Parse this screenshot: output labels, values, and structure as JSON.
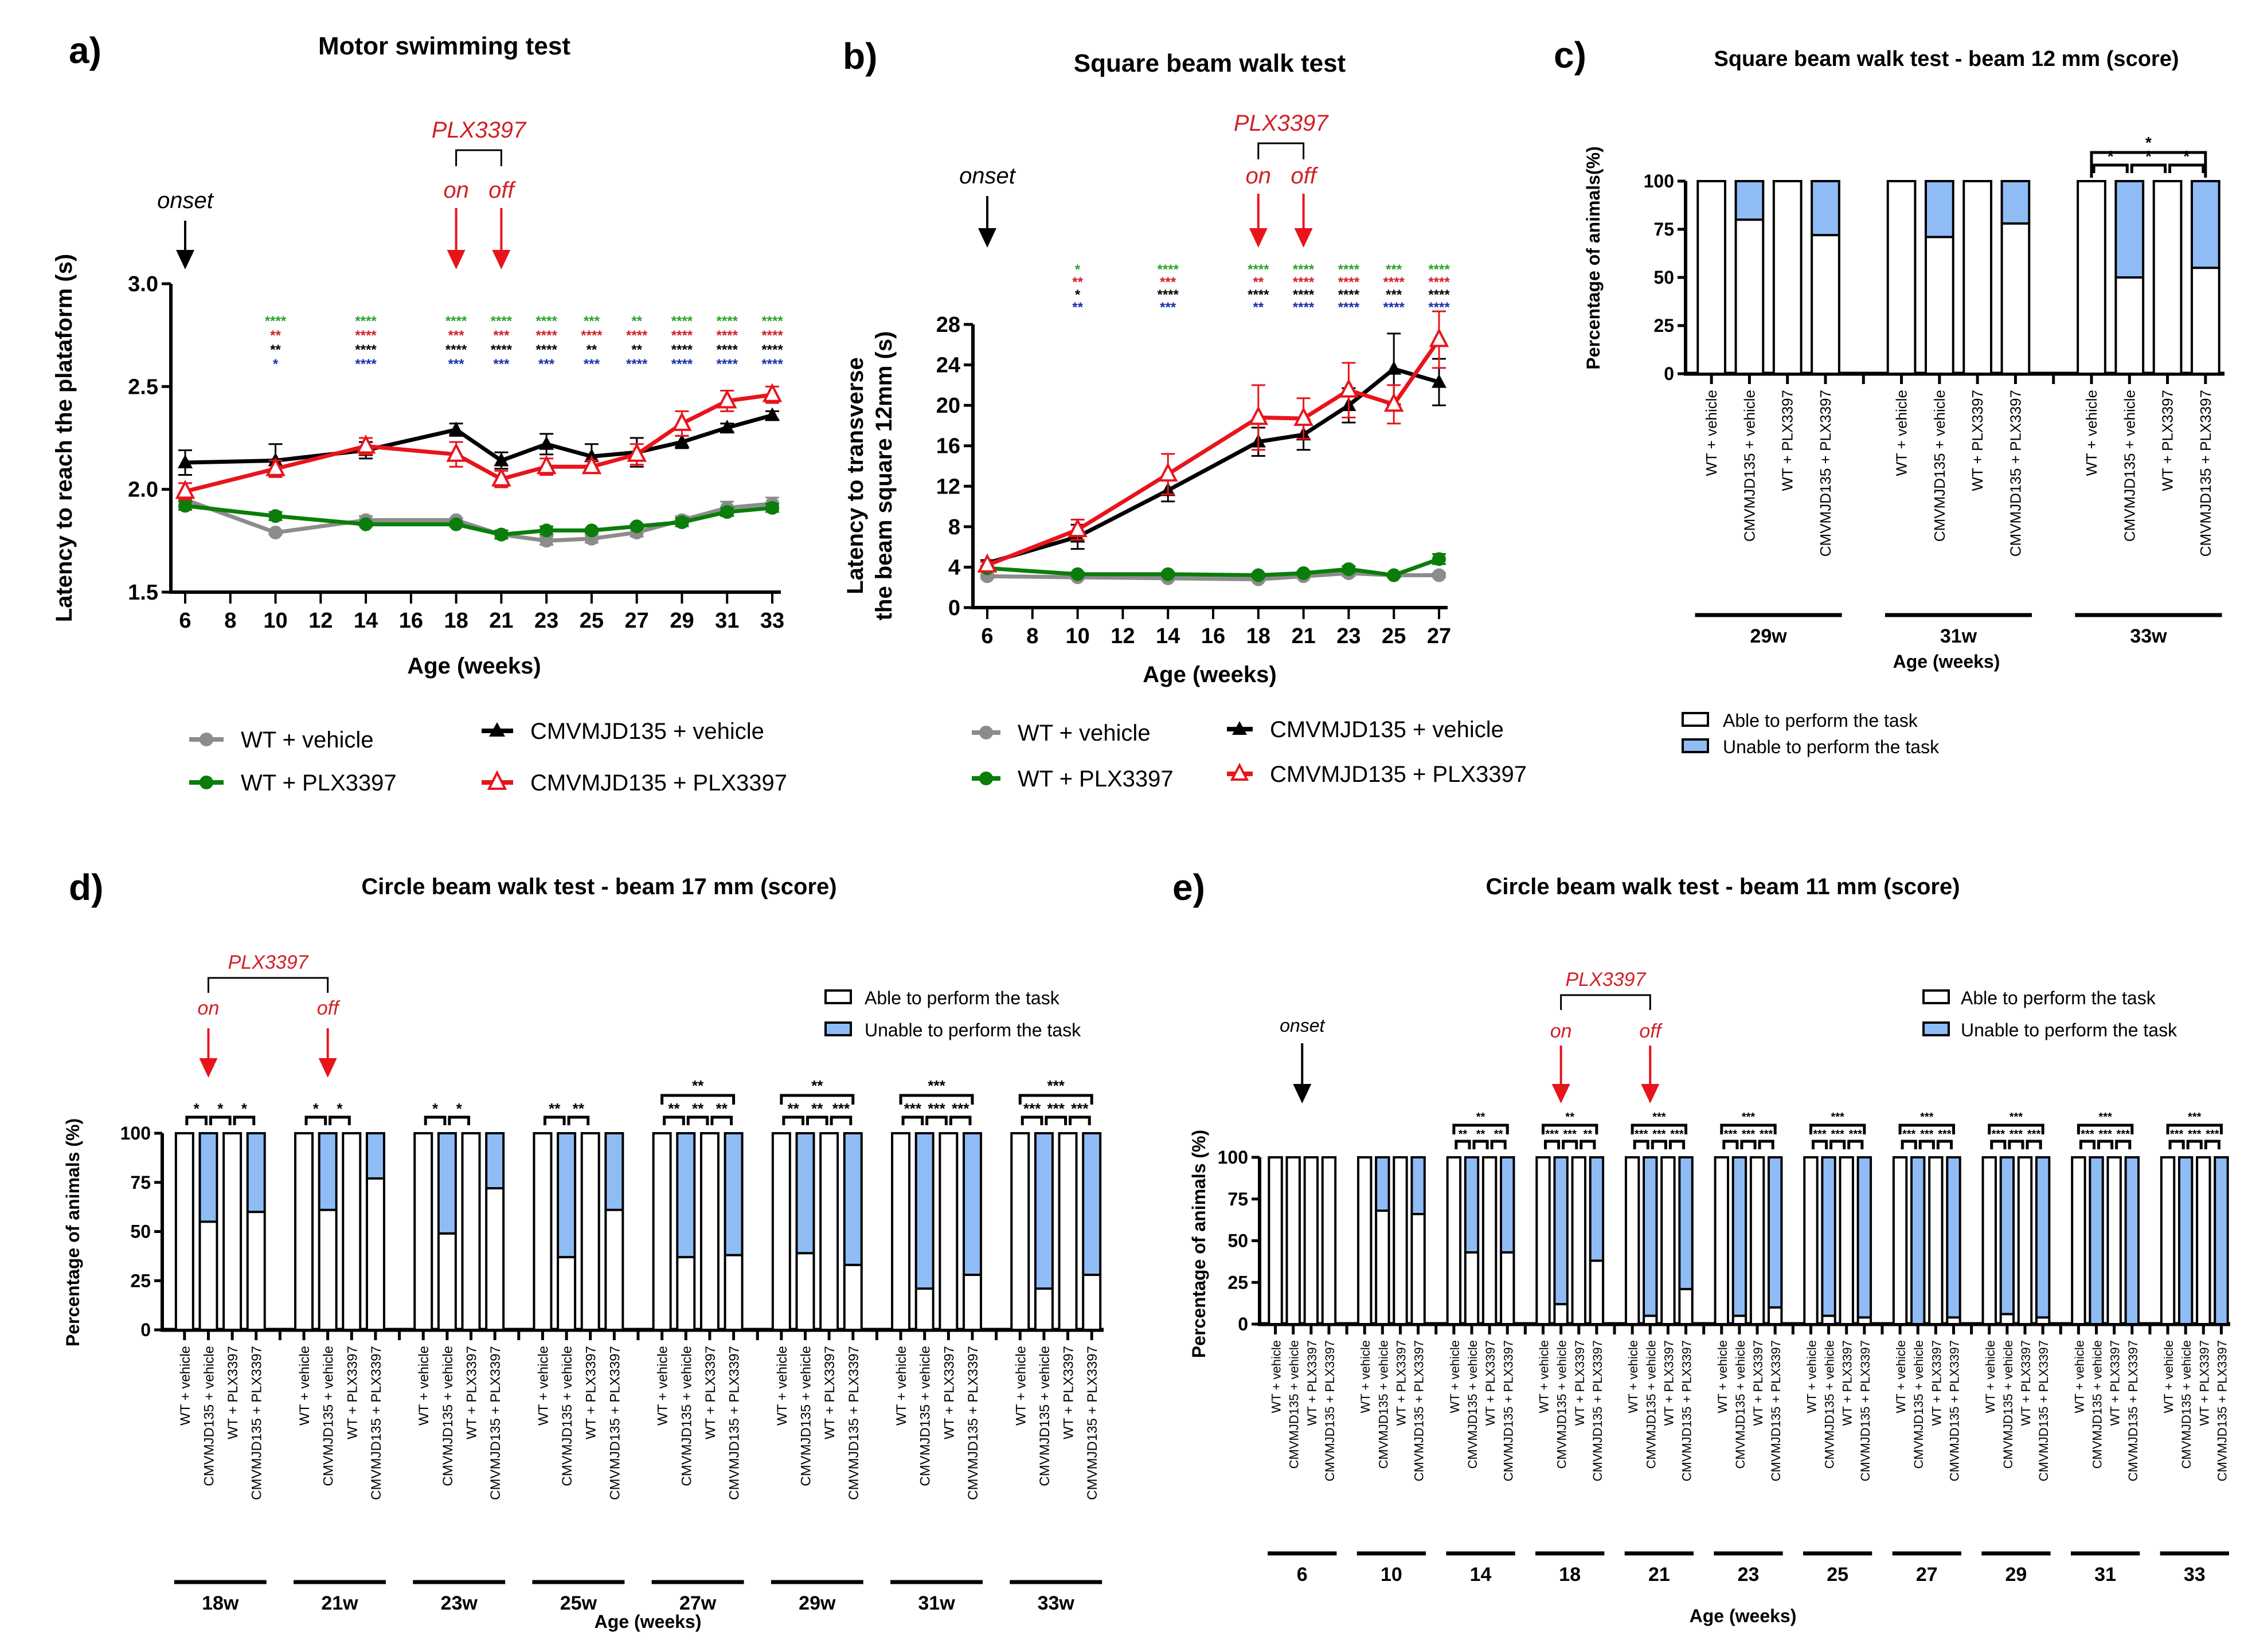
{
  "figure": {
    "legend_lines": {
      "series_names": [
        "WT + vehicle",
        "CMVMJD135 + vehicle",
        "WT + PLX3397",
        "CMVMJD135 + PLX3397"
      ]
    },
    "legend_bars": {
      "able": "Able to perform the task",
      "unable": "Unable to perform the task"
    },
    "colors": {
      "wt_vehicle": "#8c8c8c",
      "cmv_vehicle": "#000000",
      "wt_plx": "#0a7d0a",
      "cmv_plx": "#e8141c",
      "able_fill": "#ffffff",
      "unable_fill": "#8fbcf5",
      "annotation_red": "#d21f26",
      "star_green": "#2aa32a",
      "star_red": "#d21f26",
      "star_black": "#000000",
      "star_blue": "#1a2fa8"
    },
    "annotations": {
      "drug": "PLX3397",
      "on": "on",
      "off": "off",
      "onset": "onset"
    }
  },
  "chart_data": [
    {
      "id": "a",
      "panel_letter": "a)",
      "type": "line",
      "title": "Motor swimming test",
      "xlabel": "Age (weeks)",
      "ylabel": "Latency to reach the plataform (s)",
      "x_ticks": [
        "6",
        "8",
        "10",
        "12",
        "14",
        "16",
        "18",
        "21",
        "23",
        "25",
        "27",
        "29",
        "31",
        "33"
      ],
      "x": [
        "6",
        "10",
        "14",
        "18",
        "21",
        "23",
        "25",
        "27",
        "29",
        "31",
        "33"
      ],
      "ylim": [
        1.5,
        3.0
      ],
      "y_ticks": [
        "1.5",
        "2.0",
        "2.5",
        "3.0"
      ],
      "grid": false,
      "legend_position": "bottom",
      "series": [
        {
          "name": "WT + vehicle",
          "marker": "circle",
          "values": [
            1.95,
            1.79,
            1.85,
            1.85,
            1.78,
            1.75,
            1.76,
            1.79,
            1.85,
            1.91,
            1.93
          ],
          "err": [
            0.03,
            0.01,
            0.02,
            0.01,
            0.02,
            0.02,
            0.02,
            0.02,
            0.02,
            0.03,
            0.03
          ]
        },
        {
          "name": "CMVMJD135 + vehicle",
          "marker": "triangle",
          "values": [
            2.13,
            2.14,
            2.19,
            2.29,
            2.14,
            2.22,
            2.16,
            2.18,
            2.23,
            2.3,
            2.36
          ],
          "err": [
            0.06,
            0.08,
            0.04,
            0.03,
            0.04,
            0.05,
            0.06,
            0.07,
            0.03,
            0.02,
            0.02
          ]
        },
        {
          "name": "WT + PLX3397",
          "marker": "circle",
          "values": [
            1.92,
            1.87,
            1.83,
            1.83,
            1.78,
            1.8,
            1.8,
            1.82,
            1.84,
            1.89,
            1.91
          ],
          "err": [
            0.02,
            0.02,
            0.01,
            0.01,
            0.02,
            0.02,
            0.01,
            0.01,
            0.02,
            0.02,
            0.02
          ]
        },
        {
          "name": "CMVMJD135 + PLX3397",
          "marker": "open-triangle",
          "values": [
            1.99,
            2.1,
            2.21,
            2.17,
            2.05,
            2.11,
            2.11,
            2.17,
            2.32,
            2.43,
            2.46
          ],
          "err": [
            0.04,
            0.04,
            0.04,
            0.06,
            0.04,
            0.04,
            0.03,
            0.05,
            0.06,
            0.05,
            0.04
          ]
        }
      ],
      "significance": {
        "x": [
          "10",
          "14",
          "18",
          "21",
          "23",
          "25",
          "27",
          "29",
          "31",
          "33"
        ],
        "rows": [
          {
            "color": "green",
            "marks": [
              "****",
              "****",
              "****",
              "****",
              "****",
              "***",
              "**",
              "****",
              "****",
              "****"
            ]
          },
          {
            "color": "red",
            "marks": [
              "**",
              "****",
              "***",
              "***",
              "****",
              "****",
              "****",
              "****",
              "****",
              "****"
            ]
          },
          {
            "color": "black",
            "marks": [
              "**",
              "****",
              "****",
              "****",
              "****",
              "**",
              "**",
              "****",
              "****",
              "****"
            ]
          },
          {
            "color": "blue",
            "marks": [
              "*",
              "****",
              "***",
              "***",
              "***",
              "***",
              "****",
              "****",
              "****",
              "****"
            ]
          }
        ]
      },
      "markers": {
        "onset_at": "6",
        "on_at": "18",
        "off_at": "21"
      }
    },
    {
      "id": "b",
      "panel_letter": "b)",
      "type": "line",
      "title": "Square beam walk test",
      "xlabel": "Age (weeks)",
      "ylabel": [
        "Latency to transverse",
        "the beam square 12mm (s)"
      ],
      "x_ticks": [
        "6",
        "8",
        "10",
        "12",
        "14",
        "16",
        "18",
        "21",
        "23",
        "25",
        "27"
      ],
      "x": [
        "6",
        "10",
        "14",
        "18",
        "21",
        "23",
        "25",
        "27"
      ],
      "ylim": [
        0,
        28
      ],
      "y_ticks": [
        "0",
        "4",
        "8",
        "12",
        "16",
        "20",
        "24",
        "28"
      ],
      "grid": false,
      "legend_position": "bottom",
      "series": [
        {
          "name": "WT + vehicle",
          "marker": "circle",
          "values": [
            3.1,
            3.0,
            2.9,
            2.8,
            3.1,
            3.4,
            3.2,
            3.2
          ],
          "err": [
            0.2,
            0.2,
            0.2,
            0.2,
            0.2,
            0.3,
            0.2,
            0.2
          ]
        },
        {
          "name": "CMVMJD135 + vehicle",
          "marker": "triangle",
          "values": [
            4.4,
            7.0,
            11.6,
            16.4,
            17.1,
            20.0,
            23.6,
            22.3
          ],
          "err": [
            0.3,
            1.2,
            1.1,
            1.4,
            1.5,
            1.7,
            3.5,
            2.3
          ]
        },
        {
          "name": "WT + PLX3397",
          "marker": "circle",
          "values": [
            3.9,
            3.3,
            3.3,
            3.2,
            3.4,
            3.8,
            3.2,
            4.8
          ],
          "err": [
            0.2,
            0.2,
            0.2,
            0.2,
            0.2,
            0.3,
            0.2,
            0.5
          ]
        },
        {
          "name": "CMVMJD135 + PLX3397",
          "marker": "open-triangle",
          "values": [
            4.2,
            7.7,
            13.2,
            18.8,
            18.7,
            21.5,
            20.1,
            26.5
          ],
          "err": [
            0.3,
            1.0,
            2.0,
            3.2,
            2.0,
            2.7,
            1.9,
            2.8
          ]
        }
      ],
      "significance": {
        "x": [
          "10",
          "14",
          "18",
          "21",
          "23",
          "25",
          "27"
        ],
        "rows": [
          {
            "color": "green",
            "marks": [
              "*",
              "****",
              "****",
              "****",
              "****",
              "***",
              "****"
            ]
          },
          {
            "color": "red",
            "marks": [
              "**",
              "***",
              "**",
              "****",
              "****",
              "****",
              "****"
            ]
          },
          {
            "color": "black",
            "marks": [
              "*",
              "****",
              "****",
              "****",
              "****",
              "***",
              "****"
            ]
          },
          {
            "color": "blue",
            "marks": [
              "**",
              "***",
              "**",
              "****",
              "****",
              "****",
              "****"
            ]
          }
        ]
      },
      "markers": {
        "onset_at": "6",
        "on_at": "18",
        "off_at": "21"
      }
    },
    {
      "id": "c",
      "panel_letter": "c)",
      "type": "bar",
      "stacked": true,
      "title": "Square beam walk test - beam 12 mm (score)",
      "xlabel": "Age (weeks)",
      "ylabel": "Percentage of animals(%)",
      "ylim": [
        0,
        100
      ],
      "y_ticks": [
        "0",
        "25",
        "50",
        "75",
        "100"
      ],
      "categories": [
        "WT + vehicle",
        "CMVMJD135 + vehicle",
        "WT + PLX3397",
        "CMVMJD135 + PLX3397"
      ],
      "groups": [
        {
          "label": "29w",
          "able": [
            100,
            80,
            100,
            72
          ],
          "pairs": [],
          "overall": ""
        },
        {
          "label": "31w",
          "able": [
            100,
            71,
            100,
            78
          ],
          "pairs": [],
          "overall": ""
        },
        {
          "label": "33w",
          "able": [
            100,
            50,
            100,
            55
          ],
          "pairs": [
            "*",
            "*",
            "*"
          ],
          "overall": "*"
        }
      ],
      "legend_position": "bottom-left"
    },
    {
      "id": "d",
      "panel_letter": "d)",
      "type": "bar",
      "stacked": true,
      "title": "Circle beam walk test - beam 17 mm (score)",
      "xlabel": "Age (weeks)",
      "ylabel": "Percentage of animals (%)",
      "ylim": [
        0,
        100
      ],
      "y_ticks": [
        "0",
        "25",
        "50",
        "75",
        "100"
      ],
      "categories": [
        "WT + vehicle",
        "CMVMJD135 + vehicle",
        "WT + PLX3397",
        "CMVMJD135 + PLX3397"
      ],
      "groups": [
        {
          "label": "18w",
          "able": [
            100,
            55,
            100,
            60
          ],
          "pairs": [
            "*",
            "*",
            "*"
          ],
          "overall": ""
        },
        {
          "label": "21w",
          "able": [
            100,
            61,
            100,
            77
          ],
          "pairs": [
            "*",
            "*",
            ""
          ],
          "overall": ""
        },
        {
          "label": "23w",
          "able": [
            100,
            49,
            100,
            72
          ],
          "pairs": [
            "*",
            "*",
            ""
          ],
          "overall": ""
        },
        {
          "label": "25w",
          "able": [
            100,
            37,
            100,
            61
          ],
          "pairs": [
            "**",
            "**",
            ""
          ],
          "overall": ""
        },
        {
          "label": "27w",
          "able": [
            100,
            37,
            100,
            38
          ],
          "pairs": [
            "**",
            "**",
            "**"
          ],
          "overall": "**"
        },
        {
          "label": "29w",
          "able": [
            100,
            39,
            100,
            33
          ],
          "pairs": [
            "**",
            "**",
            "***"
          ],
          "overall": "**"
        },
        {
          "label": "31w",
          "able": [
            100,
            21,
            100,
            28
          ],
          "pairs": [
            "***",
            "***",
            "***"
          ],
          "overall": "***"
        },
        {
          "label": "33w",
          "able": [
            100,
            21,
            100,
            28
          ],
          "pairs": [
            "***",
            "***",
            "***"
          ],
          "overall": "***"
        }
      ],
      "markers": {
        "on_group": "18w",
        "off_group": "21w"
      },
      "legend_position": "top-right"
    },
    {
      "id": "e",
      "panel_letter": "e)",
      "type": "bar",
      "stacked": true,
      "title": "Circle beam walk test - beam 11 mm (score)",
      "xlabel": "Age (weeks)",
      "ylabel": "Percentage of animals (%)",
      "ylim": [
        0,
        100
      ],
      "y_ticks": [
        "0",
        "25",
        "50",
        "75",
        "100"
      ],
      "categories": [
        "WT + vehicle",
        "CMVMJD135 + vehicle",
        "WT + PLX3397",
        "CMVMJD135 + PLX3397"
      ],
      "groups": [
        {
          "label": "6",
          "able": [
            100,
            100,
            100,
            100
          ],
          "pairs": [],
          "overall": ""
        },
        {
          "label": "10",
          "able": [
            100,
            68,
            100,
            66
          ],
          "pairs": [],
          "overall": ""
        },
        {
          "label": "14",
          "able": [
            100,
            43,
            100,
            43
          ],
          "pairs": [
            "**",
            "**",
            "**"
          ],
          "overall": "**"
        },
        {
          "label": "18",
          "able": [
            100,
            12,
            100,
            38
          ],
          "pairs": [
            "***",
            "***",
            "**"
          ],
          "overall": "**"
        },
        {
          "label": "21",
          "able": [
            100,
            5,
            100,
            21
          ],
          "pairs": [
            "***",
            "***",
            "***"
          ],
          "overall": "***"
        },
        {
          "label": "23",
          "able": [
            100,
            5,
            100,
            10
          ],
          "pairs": [
            "***",
            "***",
            "***"
          ],
          "overall": "***"
        },
        {
          "label": "25",
          "able": [
            100,
            5,
            100,
            4
          ],
          "pairs": [
            "***",
            "***",
            "***"
          ],
          "overall": "***"
        },
        {
          "label": "27",
          "able": [
            100,
            0,
            100,
            4
          ],
          "pairs": [
            "***",
            "***",
            "***"
          ],
          "overall": "***"
        },
        {
          "label": "29",
          "able": [
            100,
            6,
            100,
            4
          ],
          "pairs": [
            "***",
            "***",
            "***"
          ],
          "overall": "***"
        },
        {
          "label": "31",
          "able": [
            100,
            0,
            100,
            0
          ],
          "pairs": [
            "***",
            "***",
            "***"
          ],
          "overall": "***"
        },
        {
          "label": "33",
          "able": [
            100,
            0,
            100,
            0
          ],
          "pairs": [
            "***",
            "***",
            "***"
          ],
          "overall": "***"
        }
      ],
      "markers": {
        "onset_group": "6",
        "on_group": "18",
        "off_group": "21"
      },
      "legend_position": "top-right"
    }
  ]
}
